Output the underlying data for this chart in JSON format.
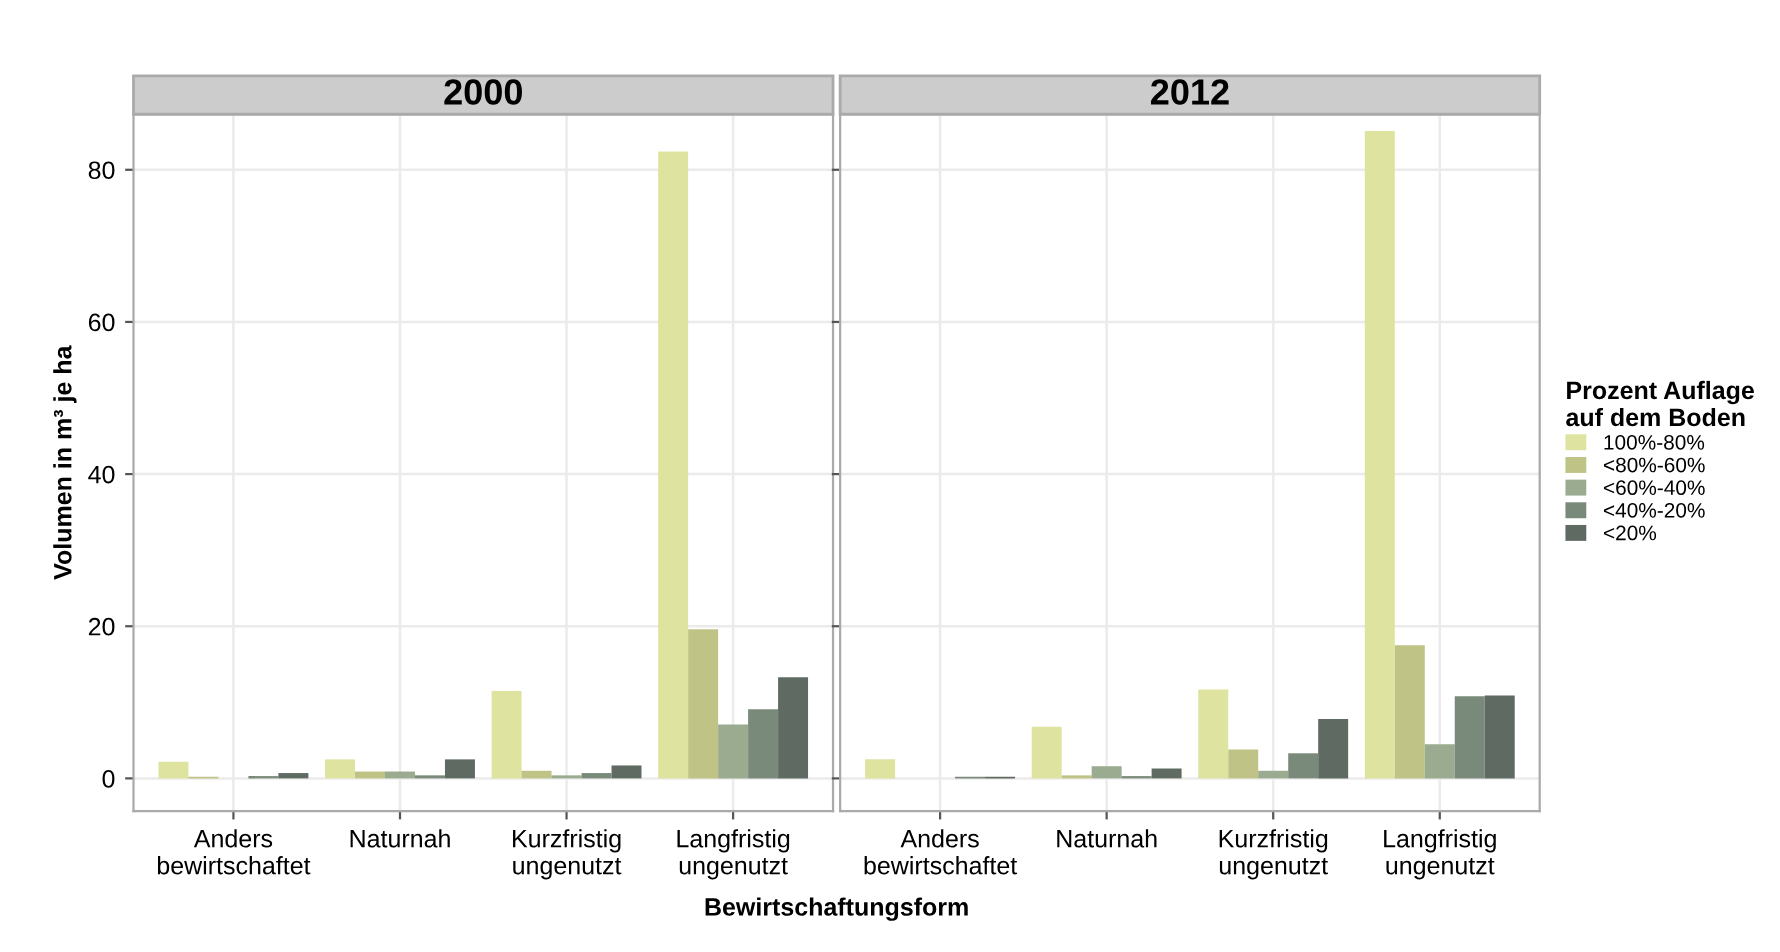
{
  "chart_data": [
    {
      "type": "bar",
      "title": "2000",
      "xlabel": "Bewirtschaftungsform",
      "ylabel": "Volumen in m³ je ha",
      "categories": [
        "Anders\nbewirtschaftet",
        "Naturnah",
        "Kurzfristig\nungenutzt",
        "Langfristig\nungenutzt"
      ],
      "series": [
        {
          "color": "#dfe3a0",
          "values": [
            2.2,
            2.5,
            11.5,
            82.4
          ]
        },
        {
          "color": "#bfc486",
          "values": [
            0.2,
            0.9,
            1.0,
            19.6
          ]
        },
        {
          "color": "#9aab90",
          "values": [
            0,
            0.9,
            0.4,
            7.1
          ]
        },
        {
          "color": "#7a8a7a",
          "values": [
            0.3,
            0.4,
            0.7,
            9.1
          ]
        },
        {
          "color": "#5f6b62",
          "values": [
            0.7,
            2.5,
            1.7,
            13.3
          ]
        }
      ],
      "ylim": [
        -4.3,
        87.3
      ],
      "yticks": [
        0,
        20,
        40,
        60,
        80
      ],
      "grid": true,
      "legend": false
    },
    {
      "type": "bar",
      "title": "2012",
      "legend_title": "Prozent Auflage\nauf dem Boden",
      "categories": [
        "Anders\nbewirtschaftet",
        "Naturnah",
        "Kurzfristig\nungenutzt",
        "Langfristig\nungenutzt"
      ],
      "series": [
        {
          "name": "100%-80%",
          "color": "#dfe3a0",
          "values": [
            2.5,
            6.8,
            11.7,
            85.1
          ]
        },
        {
          "name": "<80%-60%",
          "color": "#bfc486",
          "values": [
            0,
            0.4,
            3.8,
            17.5
          ]
        },
        {
          "name": "<60%-40%",
          "color": "#9aab90",
          "values": [
            0,
            1.6,
            1.0,
            4.5
          ]
        },
        {
          "name": "<40%-20%",
          "color": "#7a8a7a",
          "values": [
            0.2,
            0.3,
            3.3,
            10.8
          ]
        },
        {
          "name": "<20%",
          "color": "#5f6b62",
          "values": [
            0.2,
            1.3,
            7.8,
            10.9
          ]
        }
      ],
      "ylim": [
        -4.3,
        87.3
      ],
      "yticks": [
        0,
        20,
        40,
        60,
        80
      ],
      "grid": true,
      "legend": "right",
      "tick_labels": "x"
    }
  ]
}
